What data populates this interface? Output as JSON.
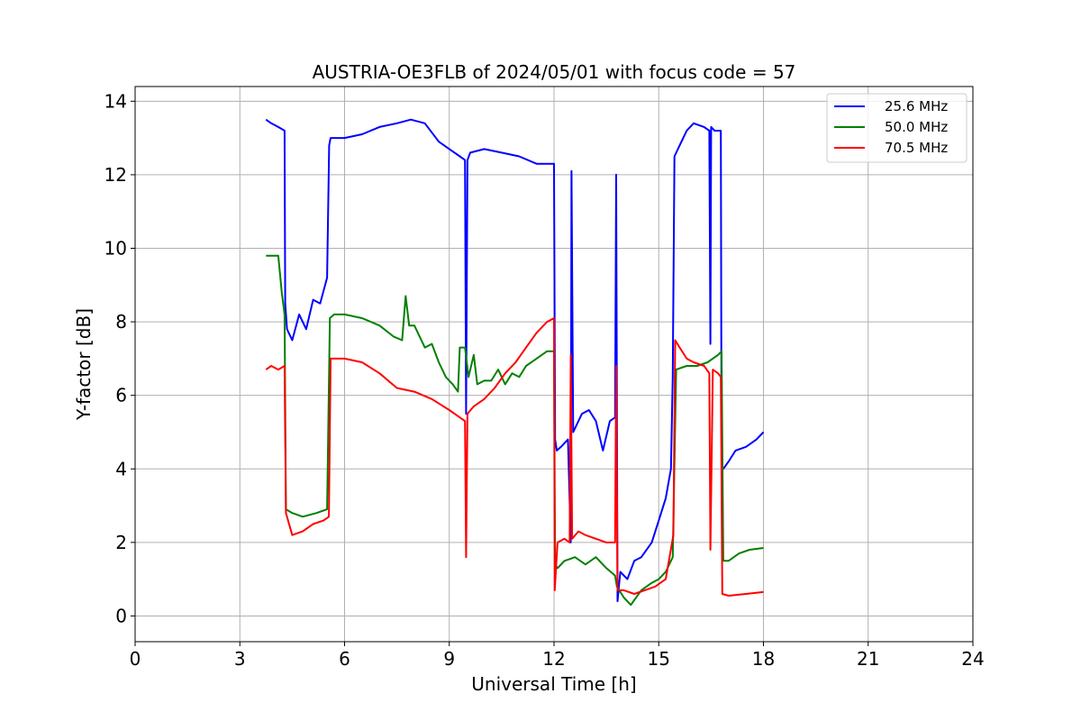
{
  "chart_data": {
    "type": "line",
    "title": "AUSTRIA-OE3FLB of 2024/05/01 with focus code = 57",
    "xlabel": "Universal Time [h]",
    "ylabel": "Y-factor [dB]",
    "xlim": [
      0,
      24
    ],
    "ylim": [
      -0.7,
      14.4
    ],
    "xticks": [
      0,
      3,
      6,
      9,
      12,
      15,
      18,
      21,
      24
    ],
    "yticks": [
      0,
      2,
      4,
      6,
      8,
      10,
      12,
      14
    ],
    "xtick_labels": [
      "0",
      "3",
      "6",
      "9",
      "12",
      "15",
      "18",
      "21",
      "24"
    ],
    "ytick_labels": [
      "0",
      "2",
      "4",
      "6",
      "8",
      "10",
      "12",
      "14"
    ],
    "grid": true,
    "legend_position": "top-right",
    "series": [
      {
        "name": "25.6 MHz",
        "color": "#0000ff",
        "x": [
          3.75,
          3.9,
          4.1,
          4.28,
          4.3,
          4.35,
          4.5,
          4.7,
          4.9,
          5.1,
          5.3,
          5.5,
          5.56,
          5.6,
          6.0,
          6.5,
          7.0,
          7.5,
          7.9,
          8.3,
          8.7,
          9.0,
          9.3,
          9.45,
          9.48,
          9.52,
          9.6,
          10.0,
          10.5,
          11.0,
          11.5,
          12.0,
          12.03,
          12.08,
          12.2,
          12.4,
          12.48,
          12.5,
          12.55,
          12.8,
          13.0,
          13.2,
          13.4,
          13.6,
          13.75,
          13.78,
          13.82,
          13.9,
          14.1,
          14.3,
          14.5,
          14.8,
          15.0,
          15.2,
          15.35,
          15.4,
          15.45,
          15.6,
          15.8,
          16.0,
          16.3,
          16.45,
          16.48,
          16.5,
          16.6,
          16.78,
          16.8,
          16.85,
          17.0,
          17.2,
          17.5,
          17.8,
          18.0
        ],
        "y": [
          13.5,
          13.4,
          13.3,
          13.2,
          8.5,
          7.8,
          7.5,
          8.2,
          7.8,
          8.6,
          8.5,
          9.2,
          12.8,
          13.0,
          13.0,
          13.1,
          13.3,
          13.4,
          13.5,
          13.4,
          12.9,
          12.7,
          12.5,
          12.4,
          5.5,
          12.4,
          12.6,
          12.7,
          12.6,
          12.5,
          12.3,
          12.3,
          4.8,
          4.5,
          4.6,
          4.8,
          2.0,
          12.1,
          5.0,
          5.5,
          5.6,
          5.3,
          4.5,
          5.3,
          5.4,
          12.0,
          0.4,
          1.2,
          1.0,
          1.5,
          1.6,
          2.0,
          2.6,
          3.2,
          4.0,
          6.5,
          12.5,
          12.8,
          13.2,
          13.4,
          13.3,
          13.2,
          7.4,
          13.3,
          13.2,
          13.2,
          4.0,
          4.0,
          4.2,
          4.5,
          4.6,
          4.8,
          5.0
        ]
      },
      {
        "name": "50.0 MHz",
        "color": "#008000",
        "x": [
          3.75,
          3.9,
          4.1,
          4.2,
          4.28,
          4.32,
          4.5,
          4.8,
          5.2,
          5.5,
          5.58,
          5.7,
          6.0,
          6.5,
          7.0,
          7.4,
          7.65,
          7.75,
          7.85,
          8.0,
          8.3,
          8.5,
          8.7,
          8.9,
          9.1,
          9.25,
          9.3,
          9.45,
          9.55,
          9.7,
          9.8,
          10.0,
          10.2,
          10.4,
          10.6,
          10.8,
          11.0,
          11.2,
          11.5,
          11.8,
          12.0,
          12.03,
          12.1,
          12.3,
          12.6,
          12.9,
          13.2,
          13.5,
          13.75,
          13.8,
          14.0,
          14.2,
          14.5,
          14.8,
          15.0,
          15.2,
          15.4,
          15.5,
          15.8,
          16.1,
          16.4,
          16.7,
          16.8,
          16.85,
          17.0,
          17.3,
          17.6,
          18.0
        ],
        "y": [
          9.8,
          9.8,
          9.8,
          8.8,
          8.2,
          2.9,
          2.8,
          2.7,
          2.8,
          2.9,
          8.1,
          8.2,
          8.2,
          8.1,
          7.9,
          7.6,
          7.5,
          8.7,
          7.9,
          7.9,
          7.3,
          7.4,
          6.9,
          6.5,
          6.3,
          6.1,
          7.3,
          7.3,
          6.5,
          7.1,
          6.3,
          6.4,
          6.4,
          6.7,
          6.3,
          6.6,
          6.5,
          6.8,
          7.0,
          7.2,
          7.2,
          1.4,
          1.3,
          1.5,
          1.6,
          1.4,
          1.6,
          1.3,
          1.1,
          0.8,
          0.5,
          0.3,
          0.7,
          0.9,
          1.0,
          1.2,
          1.6,
          6.7,
          6.8,
          6.8,
          6.9,
          7.1,
          7.2,
          1.5,
          1.5,
          1.7,
          1.8,
          1.85
        ]
      },
      {
        "name": "70.5 MHz",
        "color": "#ff0000",
        "x": [
          3.75,
          3.9,
          4.1,
          4.28,
          4.32,
          4.5,
          4.8,
          5.1,
          5.4,
          5.55,
          5.6,
          6.0,
          6.5,
          7.0,
          7.5,
          8.0,
          8.5,
          9.0,
          9.3,
          9.45,
          9.48,
          9.52,
          9.7,
          10.0,
          10.3,
          10.6,
          10.9,
          11.2,
          11.5,
          11.8,
          12.0,
          12.02,
          12.1,
          12.3,
          12.45,
          12.48,
          12.52,
          12.7,
          12.9,
          13.2,
          13.5,
          13.75,
          13.78,
          13.82,
          14.0,
          14.3,
          14.6,
          14.9,
          15.2,
          15.42,
          15.47,
          15.6,
          15.8,
          16.0,
          16.3,
          16.45,
          16.48,
          16.55,
          16.7,
          16.78,
          16.82,
          17.0,
          17.5,
          18.0
        ],
        "y": [
          6.7,
          6.8,
          6.7,
          6.8,
          2.8,
          2.2,
          2.3,
          2.5,
          2.6,
          2.7,
          7.0,
          7.0,
          6.9,
          6.6,
          6.2,
          6.1,
          5.9,
          5.6,
          5.4,
          5.3,
          1.6,
          5.5,
          5.7,
          5.9,
          6.2,
          6.6,
          6.9,
          7.3,
          7.7,
          8.0,
          8.1,
          0.7,
          2.0,
          2.1,
          2.0,
          7.1,
          2.1,
          2.3,
          2.2,
          2.1,
          2.0,
          2.0,
          6.8,
          0.7,
          0.7,
          0.6,
          0.7,
          0.8,
          1.0,
          2.2,
          7.5,
          7.3,
          7.0,
          6.9,
          6.8,
          6.6,
          1.8,
          6.7,
          6.6,
          6.5,
          0.6,
          0.55,
          0.6,
          0.65
        ]
      }
    ]
  }
}
